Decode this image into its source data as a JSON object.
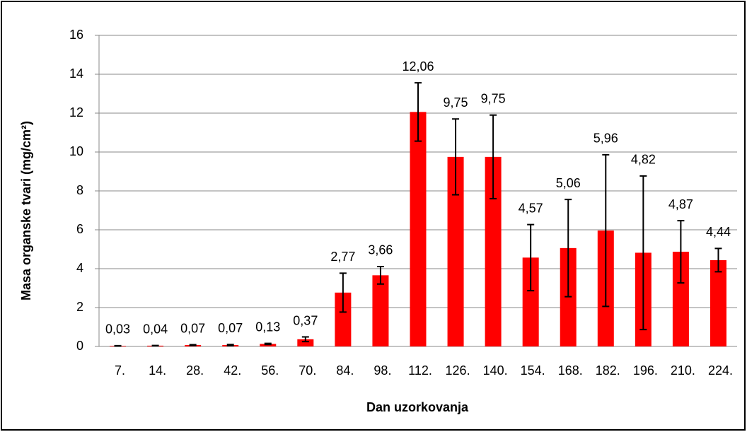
{
  "chart_data": {
    "type": "bar",
    "x_label": "Dan uzorkovanja",
    "y_label": "Masa organske tvari (mg/cm²)",
    "categories": [
      "7.",
      "14.",
      "28.",
      "42.",
      "56.",
      "70.",
      "84.",
      "98.",
      "112.",
      "126.",
      "140.",
      "154.",
      "168.",
      "182.",
      "196.",
      "210.",
      "224."
    ],
    "values": [
      0.03,
      0.04,
      0.07,
      0.07,
      0.13,
      0.37,
      2.77,
      3.66,
      12.06,
      9.75,
      9.75,
      4.57,
      5.06,
      5.96,
      4.82,
      4.87,
      4.44
    ],
    "value_labels": [
      "0,03",
      "0,04",
      "0,07",
      "0,07",
      "0,13",
      "0,37",
      "2,77",
      "3,66",
      "12,06",
      "9,75",
      "9,75",
      "4,57",
      "5,06",
      "5,96",
      "4,82",
      "4,87",
      "4,44"
    ],
    "errors": [
      0.01,
      0.01,
      0.02,
      0.03,
      0.03,
      0.12,
      1.0,
      0.45,
      1.5,
      1.95,
      2.15,
      1.7,
      2.5,
      3.9,
      3.95,
      1.6,
      0.6
    ],
    "color": "#ff0000",
    "error_color": "#000000",
    "ylim": [
      0,
      16
    ],
    "yticks": [
      0,
      2,
      4,
      6,
      8,
      10,
      12,
      14,
      16
    ],
    "grid": true
  }
}
